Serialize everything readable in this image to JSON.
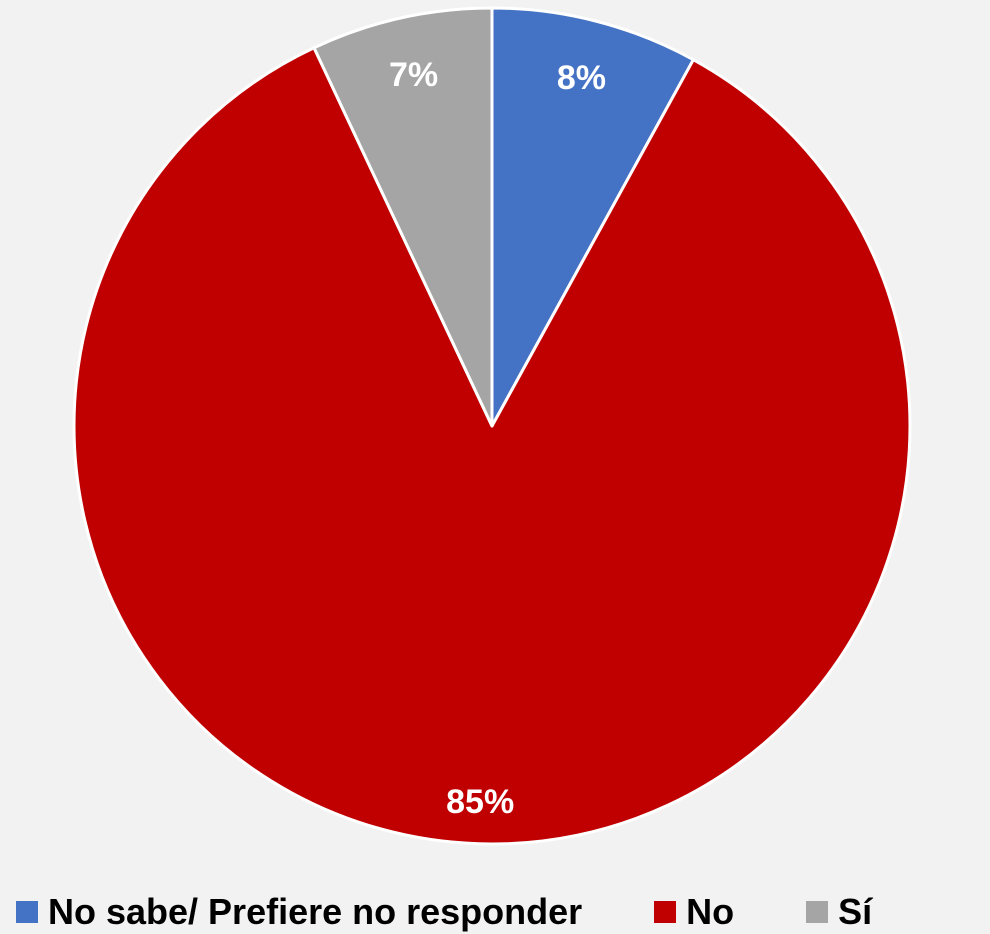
{
  "chart_data": {
    "type": "pie",
    "title": "",
    "slices": [
      {
        "label": "No sabe/ Prefiere no responder",
        "value": 8,
        "display": "8%",
        "color": "#4472c4"
      },
      {
        "label": "No",
        "value": 85,
        "display": "85%",
        "color": "#c00000"
      },
      {
        "label": "Sí",
        "value": 7,
        "display": "7%",
        "color": "#a5a5a5"
      }
    ],
    "start": "top, clockwise",
    "legend_position": "bottom"
  },
  "legend": {
    "items": [
      {
        "label": "No sabe/ Prefiere no responder",
        "color": "#4472c4"
      },
      {
        "label": "No",
        "color": "#c00000"
      },
      {
        "label": "Sí",
        "color": "#a5a5a5"
      }
    ]
  }
}
